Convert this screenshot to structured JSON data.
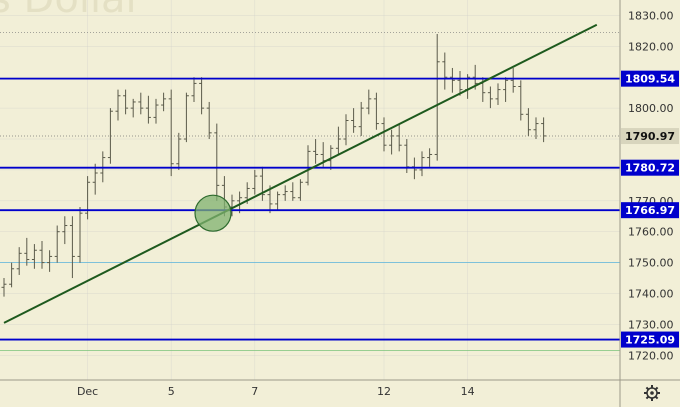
{
  "watermark": "s Dollar",
  "settings_icon": "gear-icon",
  "colors": {
    "background": "#f2efd7",
    "candle": "#5a5a4a",
    "level_line": "#0000cc",
    "badge": "#0000cc",
    "thin_level": "#5ab4dc",
    "trendline": "#1e5a1e",
    "circle_fill": "#7fb26f",
    "circle_stroke": "#2e6b2e",
    "grid": "#c8c8c8"
  },
  "chart_data": {
    "type": "candlestick",
    "y_axis": {
      "ylim": [
        1712,
        1835
      ],
      "ticks": [
        1720,
        1730,
        1740,
        1750,
        1760,
        1770,
        1780,
        1790,
        1800,
        1810,
        1820,
        1830
      ],
      "scale": "linear",
      "position": "right"
    },
    "x_axis": {
      "labels": [
        {
          "text": "Dec",
          "bar": 11
        },
        {
          "text": "5",
          "bar": 22
        },
        {
          "text": "7",
          "bar": 33
        },
        {
          "text": "12",
          "bar": 50
        },
        {
          "text": "14",
          "bar": 61
        }
      ],
      "bar_count": 72
    },
    "price_levels": [
      {
        "value": 1809.54,
        "label": "1809.54",
        "style": "thick"
      },
      {
        "value": 1780.72,
        "label": "1780.72",
        "style": "thick"
      },
      {
        "value": 1766.97,
        "label": "1766.97",
        "style": "thick"
      },
      {
        "value": 1725.09,
        "label": "1725.09",
        "style": "thick"
      },
      {
        "value": 1750.0,
        "label": "",
        "style": "thin"
      },
      {
        "value": 1721.5,
        "label": "",
        "style": "thin"
      }
    ],
    "current_price": {
      "value": 1790.97,
      "label": "1790.97"
    },
    "dotted_levels": [
      1824.5,
      1790.97
    ],
    "trendline": {
      "start": {
        "bar": 0,
        "value": 1730.5
      },
      "end": {
        "bar": 78,
        "value": 1827
      }
    },
    "highlight_circle": {
      "bar": 27.5,
      "value": 1766
    },
    "candles": [
      [
        1742,
        1745,
        1739,
        1743
      ],
      [
        1743,
        1750,
        1742,
        1748
      ],
      [
        1748,
        1755,
        1746,
        1753
      ],
      [
        1753,
        1758,
        1749,
        1751
      ],
      [
        1751,
        1756,
        1748,
        1754
      ],
      [
        1754,
        1757,
        1748,
        1750
      ],
      [
        1750,
        1754,
        1747,
        1752
      ],
      [
        1752,
        1762,
        1750,
        1760
      ],
      [
        1760,
        1765,
        1756,
        1762
      ],
      [
        1762,
        1765,
        1745,
        1752
      ],
      [
        1752,
        1768,
        1750,
        1766
      ],
      [
        1766,
        1778,
        1764,
        1776
      ],
      [
        1776,
        1782,
        1772,
        1779
      ],
      [
        1779,
        1786,
        1776,
        1784
      ],
      [
        1784,
        1800,
        1782,
        1799
      ],
      [
        1799,
        1806,
        1796,
        1804
      ],
      [
        1804,
        1806,
        1798,
        1800
      ],
      [
        1800,
        1803,
        1797,
        1802
      ],
      [
        1802,
        1805,
        1798,
        1800
      ],
      [
        1800,
        1804,
        1795,
        1797
      ],
      [
        1797,
        1803,
        1795,
        1801
      ],
      [
        1801,
        1805,
        1799,
        1803
      ],
      [
        1803,
        1806,
        1778,
        1782
      ],
      [
        1782,
        1792,
        1780,
        1790
      ],
      [
        1790,
        1805,
        1789,
        1804
      ],
      [
        1804,
        1810,
        1802,
        1808
      ],
      [
        1808,
        1810,
        1798,
        1800
      ],
      [
        1800,
        1802,
        1790,
        1792
      ],
      [
        1792,
        1795,
        1770,
        1775
      ],
      [
        1775,
        1778,
        1765,
        1768
      ],
      [
        1768,
        1772,
        1765,
        1770
      ],
      [
        1770,
        1773,
        1766,
        1771
      ],
      [
        1771,
        1776,
        1769,
        1774
      ],
      [
        1774,
        1780,
        1772,
        1778
      ],
      [
        1778,
        1781,
        1770,
        1772
      ],
      [
        1772,
        1775,
        1766,
        1769
      ],
      [
        1769,
        1773,
        1767,
        1772
      ],
      [
        1772,
        1775,
        1770,
        1773
      ],
      [
        1773,
        1776,
        1770,
        1771
      ],
      [
        1771,
        1777,
        1770,
        1776
      ],
      [
        1776,
        1788,
        1775,
        1786
      ],
      [
        1786,
        1790,
        1782,
        1785
      ],
      [
        1785,
        1789,
        1781,
        1783
      ],
      [
        1783,
        1788,
        1780,
        1787
      ],
      [
        1787,
        1794,
        1785,
        1790
      ],
      [
        1790,
        1798,
        1788,
        1796
      ],
      [
        1796,
        1800,
        1792,
        1794
      ],
      [
        1794,
        1802,
        1791,
        1800
      ],
      [
        1800,
        1806,
        1798,
        1803
      ],
      [
        1803,
        1805,
        1793,
        1795
      ],
      [
        1795,
        1797,
        1786,
        1788
      ],
      [
        1788,
        1793,
        1785,
        1791
      ],
      [
        1791,
        1795,
        1786,
        1788
      ],
      [
        1788,
        1790,
        1779,
        1781
      ],
      [
        1781,
        1784,
        1777,
        1780
      ],
      [
        1780,
        1786,
        1778,
        1784
      ],
      [
        1784,
        1787,
        1781,
        1785
      ],
      [
        1785,
        1824,
        1783,
        1815
      ],
      [
        1815,
        1818,
        1806,
        1810
      ],
      [
        1810,
        1813,
        1805,
        1809
      ],
      [
        1809,
        1812,
        1804,
        1806
      ],
      [
        1806,
        1811,
        1803,
        1810
      ],
      [
        1810,
        1814,
        1806,
        1808
      ],
      [
        1808,
        1810,
        1802,
        1805
      ],
      [
        1805,
        1807,
        1800,
        1803
      ],
      [
        1803,
        1808,
        1801,
        1806
      ],
      [
        1806,
        1810,
        1802,
        1809
      ],
      [
        1809,
        1813,
        1805,
        1807
      ],
      [
        1807,
        1809,
        1796,
        1798
      ],
      [
        1798,
        1800,
        1791,
        1793
      ],
      [
        1793,
        1797,
        1790,
        1795
      ],
      [
        1795,
        1797,
        1789,
        1791
      ]
    ]
  }
}
